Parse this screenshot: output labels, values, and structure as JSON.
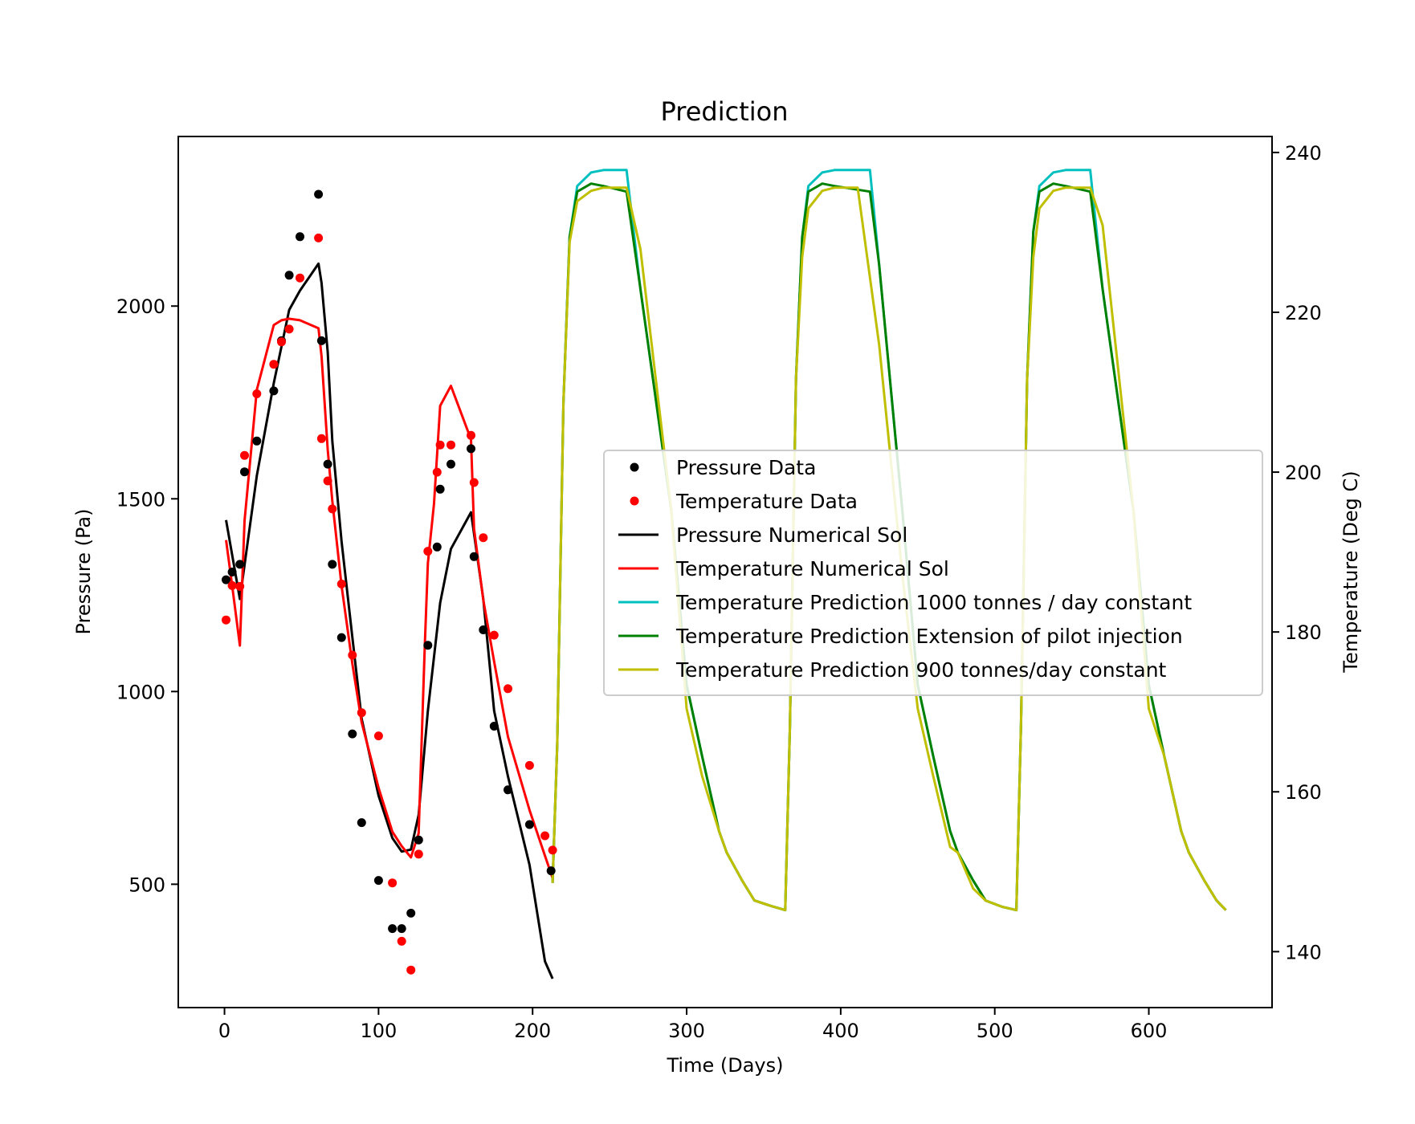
{
  "chart_data": {
    "type": "line",
    "title": "Prediction",
    "xlabel": "Time (Days)",
    "ylabel_left": "Pressure (Pa)",
    "ylabel_right": "Temperature (Deg C)",
    "xlim": [
      -30,
      680
    ],
    "ylim_left": [
      180,
      2440
    ],
    "ylim_right": [
      133,
      242
    ],
    "x_ticks": [
      0,
      100,
      200,
      300,
      400,
      500,
      600
    ],
    "y_left_ticks": [
      500,
      1000,
      1500,
      2000
    ],
    "y_right_ticks": [
      140,
      160,
      180,
      200,
      220,
      240
    ],
    "grid": false,
    "legend_position": "center-right",
    "series": [
      {
        "name": "Pressure Data",
        "kind": "scatter",
        "axis": "left",
        "color": "#000000",
        "x": [
          1,
          5,
          10,
          13,
          21,
          32,
          37,
          42,
          49,
          61,
          63,
          67,
          70,
          76,
          83,
          89,
          100,
          109,
          115,
          121,
          126,
          132,
          138,
          140,
          147,
          160,
          162,
          168,
          175,
          184,
          198,
          212
        ],
        "y": [
          1290,
          1310,
          1330,
          1570,
          1650,
          1780,
          1910,
          2080,
          2180,
          2290,
          1910,
          1590,
          1330,
          1140,
          890,
          660,
          510,
          385,
          385,
          425,
          615,
          1120,
          1375,
          1525,
          1590,
          1630,
          1350,
          1160,
          910,
          745,
          655,
          535
        ]
      },
      {
        "name": "Temperature Data",
        "kind": "scatter",
        "axis": "right",
        "color": "#ff0000",
        "x": [
          1,
          5,
          10,
          13,
          21,
          32,
          37,
          42,
          49,
          61,
          63,
          67,
          70,
          76,
          83,
          89,
          100,
          109,
          115,
          121,
          126,
          132,
          138,
          140,
          147,
          160,
          162,
          168,
          175,
          184,
          198,
          208,
          213
        ],
        "y": [
          181.5,
          185.8,
          185.7,
          202.1,
          209.8,
          213.5,
          216.3,
          217.9,
          224.3,
          229.3,
          204.2,
          198.9,
          195.4,
          186.0,
          177.1,
          169.9,
          167.0,
          148.6,
          141.3,
          137.7,
          152.2,
          190.1,
          200.0,
          203.4,
          203.4,
          204.6,
          198.7,
          191.8,
          179.6,
          172.9,
          163.3,
          154.5,
          152.7
        ]
      },
      {
        "name": "Pressure Numerical Sol",
        "kind": "line",
        "axis": "left",
        "color": "#000000",
        "x": [
          1,
          10,
          21,
          32,
          42,
          49,
          61,
          63,
          67,
          70,
          76,
          83,
          89,
          100,
          109,
          115,
          121,
          126,
          132,
          140,
          147,
          160,
          168,
          175,
          184,
          198,
          208,
          213
        ],
        "y": [
          1445,
          1240,
          1560,
          1800,
          1990,
          2040,
          2110,
          2060,
          1880,
          1650,
          1390,
          1140,
          930,
          730,
          620,
          585,
          590,
          680,
          950,
          1230,
          1370,
          1465,
          1240,
          950,
          780,
          550,
          300,
          255
        ]
      },
      {
        "name": "Temperature Numerical Sol",
        "kind": "line",
        "axis": "right",
        "color": "#ff0000",
        "x": [
          1,
          5,
          10,
          13,
          21,
          32,
          37,
          42,
          49,
          61,
          63,
          67,
          70,
          76,
          83,
          89,
          100,
          109,
          115,
          121,
          126,
          130,
          132,
          136,
          140,
          147,
          160,
          162,
          168,
          175,
          184,
          198,
          208,
          213
        ],
        "y": [
          191.5,
          185.8,
          178.3,
          193.9,
          210.3,
          218.4,
          219.0,
          219.2,
          219.0,
          218.0,
          214.5,
          202.8,
          196.4,
          185.8,
          176.0,
          168.7,
          160.5,
          155.0,
          153.2,
          151.8,
          154.8,
          178.1,
          188.6,
          196.0,
          208.3,
          210.8,
          204.1,
          192.9,
          184.0,
          176.3,
          166.9,
          157.7,
          152.0,
          149.2
        ]
      },
      {
        "name": "Temperature Prediction 1000 tonnes / day constant",
        "kind": "line",
        "axis": "right",
        "color": "#00bfbf",
        "x": [
          213,
          216,
          220,
          224,
          229,
          238,
          246,
          261,
          270,
          290,
          300,
          310,
          321,
          326,
          336,
          344,
          355,
          364,
          367,
          371,
          375,
          379,
          388,
          396,
          419,
          425,
          440,
          450,
          460,
          471,
          476,
          486,
          494,
          505,
          514,
          517,
          521,
          525,
          529,
          538,
          546,
          562,
          570,
          590,
          600,
          610,
          621,
          626,
          636,
          644,
          650
        ],
        "y": [
          148.6,
          166.0,
          208.7,
          229.4,
          235.8,
          237.5,
          237.8,
          237.8,
          222.9,
          195.2,
          173.4,
          164.5,
          155.1,
          152.4,
          148.9,
          146.4,
          145.7,
          145.2,
          168.0,
          211.7,
          229.4,
          235.8,
          237.5,
          237.8,
          237.8,
          225.9,
          195.2,
          173.4,
          164.5,
          155.1,
          152.4,
          148.9,
          146.4,
          145.6,
          145.2,
          168.0,
          211.7,
          230.1,
          235.8,
          237.5,
          237.8,
          237.8,
          222.9,
          195.2,
          173.4,
          164.5,
          155.1,
          152.4,
          148.9,
          146.4,
          145.2
        ]
      },
      {
        "name": "Temperature Prediction Extension of pilot injection",
        "kind": "line",
        "axis": "right",
        "color": "#008000",
        "x": [
          213,
          216,
          220,
          224,
          229,
          238,
          246,
          261,
          270,
          290,
          300,
          310,
          321,
          326,
          336,
          344,
          355,
          364,
          367,
          371,
          375,
          379,
          388,
          396,
          419,
          425,
          440,
          450,
          460,
          471,
          476,
          486,
          494,
          505,
          514,
          517,
          521,
          525,
          529,
          538,
          546,
          562,
          570,
          590,
          600,
          610,
          621,
          626,
          636,
          644,
          650
        ],
        "y": [
          148.6,
          166.0,
          208.7,
          229.4,
          235.1,
          236.1,
          235.8,
          235.1,
          222.9,
          195.2,
          173.4,
          164.5,
          155.1,
          152.4,
          148.9,
          146.4,
          145.7,
          145.2,
          168.0,
          211.7,
          229.4,
          235.1,
          236.1,
          235.8,
          235.1,
          225.9,
          195.2,
          173.4,
          164.5,
          155.1,
          152.4,
          148.9,
          146.4,
          145.6,
          145.2,
          168.0,
          211.7,
          230.1,
          235.1,
          236.1,
          235.8,
          235.1,
          222.9,
          195.2,
          173.4,
          164.5,
          155.1,
          152.4,
          148.9,
          146.4,
          145.2
        ]
      },
      {
        "name": "Temperature Prediction 900 tonnes/day constant",
        "kind": "line",
        "axis": "right",
        "color": "#bfbf00",
        "x": [
          213,
          216,
          220,
          224,
          229,
          238,
          246,
          261,
          270,
          290,
          300,
          310,
          321,
          326,
          336,
          344,
          355,
          364,
          367,
          371,
          375,
          379,
          388,
          396,
          411,
          425,
          440,
          450,
          460,
          471,
          476,
          486,
          494,
          505,
          514,
          517,
          521,
          525,
          529,
          538,
          546,
          562,
          570,
          590,
          600,
          610,
          621,
          626,
          636,
          644,
          650
        ],
        "y": [
          148.6,
          166.0,
          208.7,
          228.8,
          233.9,
          235.2,
          235.6,
          235.6,
          227.9,
          195.2,
          170.4,
          162.0,
          155.1,
          152.4,
          148.9,
          146.4,
          145.7,
          145.2,
          168.0,
          211.7,
          226.9,
          233.0,
          235.2,
          235.6,
          235.6,
          215.9,
          187.2,
          170.4,
          162.0,
          153.1,
          152.4,
          147.9,
          146.4,
          145.6,
          145.2,
          168.0,
          211.7,
          226.9,
          233.0,
          235.2,
          235.6,
          235.6,
          230.9,
          195.2,
          170.4,
          164.5,
          155.1,
          152.4,
          148.9,
          146.4,
          145.2
        ]
      }
    ]
  }
}
